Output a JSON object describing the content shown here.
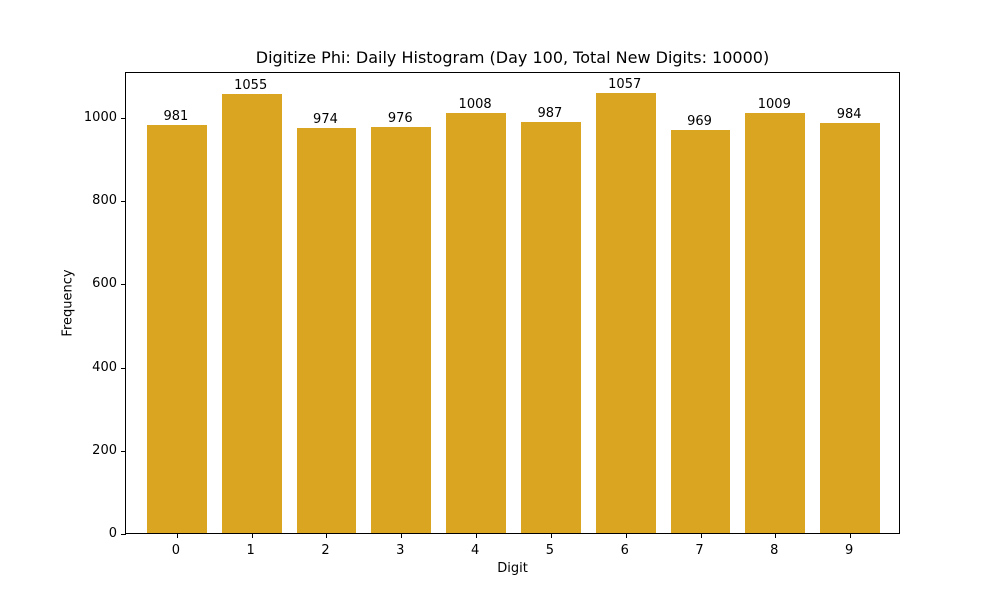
{
  "chart_data": {
    "type": "bar",
    "title": "Digitize Phi: Daily Histogram (Day 100, Total New Digits: 10000)",
    "xlabel": "Digit",
    "ylabel": "Frequency",
    "categories": [
      "0",
      "1",
      "2",
      "3",
      "4",
      "5",
      "6",
      "7",
      "8",
      "9"
    ],
    "values": [
      981,
      1055,
      974,
      976,
      1008,
      987,
      1057,
      969,
      1009,
      984
    ],
    "yticks": [
      0,
      200,
      400,
      600,
      800,
      1000
    ],
    "ylim": [
      0,
      1110
    ],
    "bar_color": "#DAA520",
    "grid": false,
    "legend": null,
    "data_labels": true
  }
}
